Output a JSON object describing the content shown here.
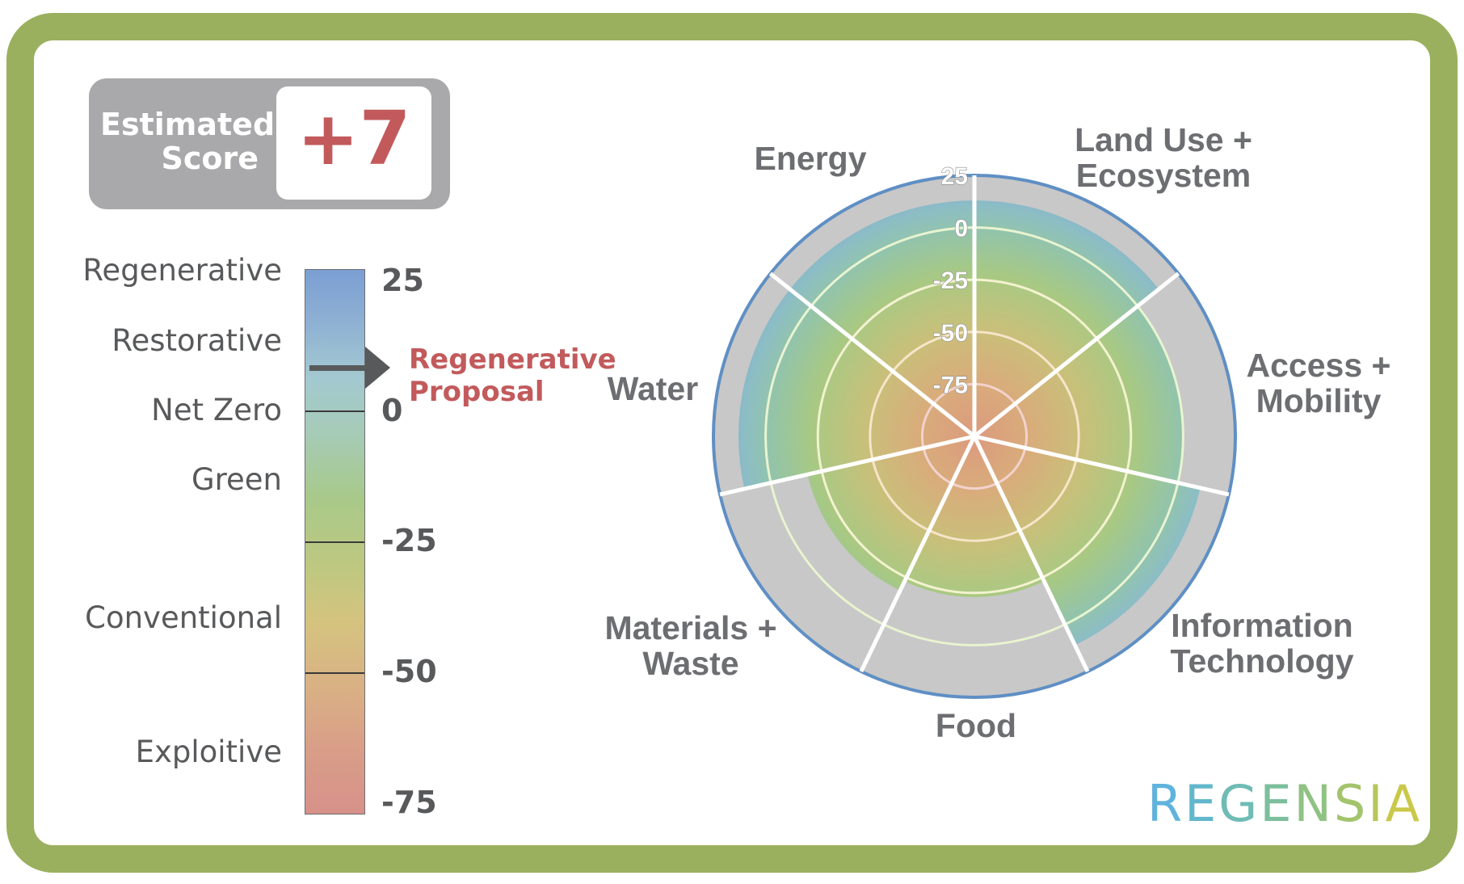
{
  "estimated_score": {
    "label_line1": "Estimated",
    "label_line2": "Score",
    "value": "+7"
  },
  "scale": {
    "categories": [
      "Regenerative",
      "Restorative",
      "Net Zero",
      "Green",
      "Conventional",
      "Exploitive"
    ],
    "tick_labels": [
      "25",
      "0",
      "-25",
      "-50",
      "-75"
    ],
    "marker_label_line1": "Regenerative",
    "marker_label_line2": "Proposal",
    "marker_value": 7
  },
  "chart_data": {
    "type": "radar",
    "categories": [
      "Land Use + Ecosystem",
      "Access + Mobility",
      "Information Technology",
      "Food",
      "Materials + Waste",
      "Water",
      "Energy"
    ],
    "values": [
      13,
      0,
      11,
      -23,
      -18,
      13,
      13
    ],
    "r_range": [
      -100,
      25
    ],
    "ring_labels": [
      "25",
      "0",
      "-25",
      "-50",
      "-75"
    ],
    "grid": true
  },
  "labels": {
    "land_use_1": "Land Use +",
    "land_use_2": "Ecosystem",
    "access_1": "Access +",
    "access_2": "Mobility",
    "info_1": "Information",
    "info_2": "Technology",
    "food": "Food",
    "materials_1": "Materials +",
    "materials_2": "Waste",
    "water": "Water",
    "energy": "Energy"
  },
  "brand": {
    "name": "REGENSIA"
  },
  "colors": {
    "frame": "#9ab05e",
    "score_red": "#c25a5c",
    "ring_blue": "#5f8fc4",
    "sector_grey": "#c8c8c8",
    "text_grey": "#58595b"
  }
}
